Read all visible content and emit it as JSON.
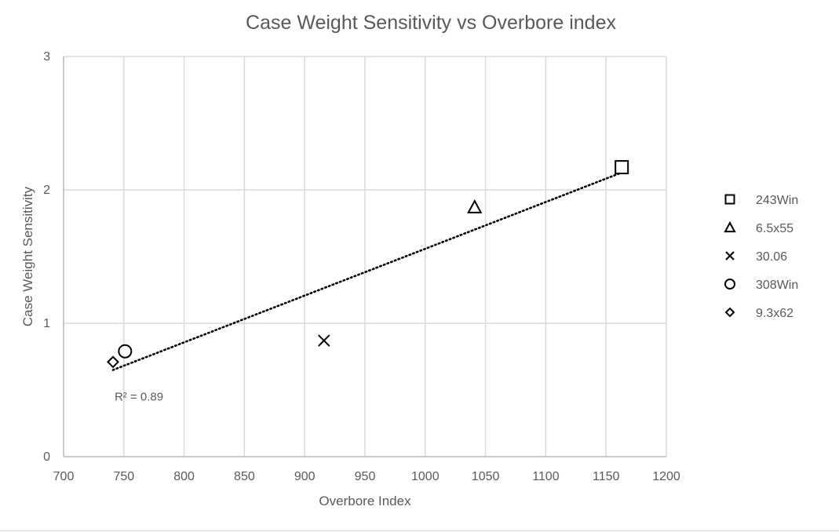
{
  "chart_data": {
    "type": "scatter",
    "title": "Case Weight Sensitivity vs Overbore index",
    "xlabel": "Overbore Index",
    "ylabel": "Case Weight Sensitivity",
    "xlim": [
      700,
      1200
    ],
    "ylim": [
      0,
      3
    ],
    "x_ticks": [
      "700",
      "750",
      "800",
      "850",
      "900",
      "950",
      "1000",
      "1050",
      "1100",
      "1150",
      "1200"
    ],
    "y_ticks": [
      "0",
      "1",
      "2",
      "3"
    ],
    "grid": true,
    "legend_position": "right",
    "series": [
      {
        "name": "243Win",
        "marker": "square",
        "points": [
          {
            "x": 1163,
            "y": 2.17
          }
        ]
      },
      {
        "name": "6.5x55",
        "marker": "triangle",
        "points": [
          {
            "x": 1041,
            "y": 1.87
          }
        ]
      },
      {
        "name": "30.06",
        "marker": "x",
        "points": [
          {
            "x": 916,
            "y": 0.87
          }
        ]
      },
      {
        "name": "308Win",
        "marker": "circle",
        "points": [
          {
            "x": 751,
            "y": 0.79
          }
        ]
      },
      {
        "name": "9.3x62",
        "marker": "diamond",
        "points": [
          {
            "x": 741,
            "y": 0.71
          }
        ]
      }
    ],
    "trendline": {
      "style": "dotted",
      "start": {
        "x": 741,
        "y": 0.65
      },
      "end": {
        "x": 1163,
        "y": 2.13
      },
      "label": "R² = 0.89"
    },
    "colors": {
      "grid": "#d9d9d9",
      "axis": "#bfbfbf",
      "marker": "#000000",
      "text": "#595959"
    }
  }
}
